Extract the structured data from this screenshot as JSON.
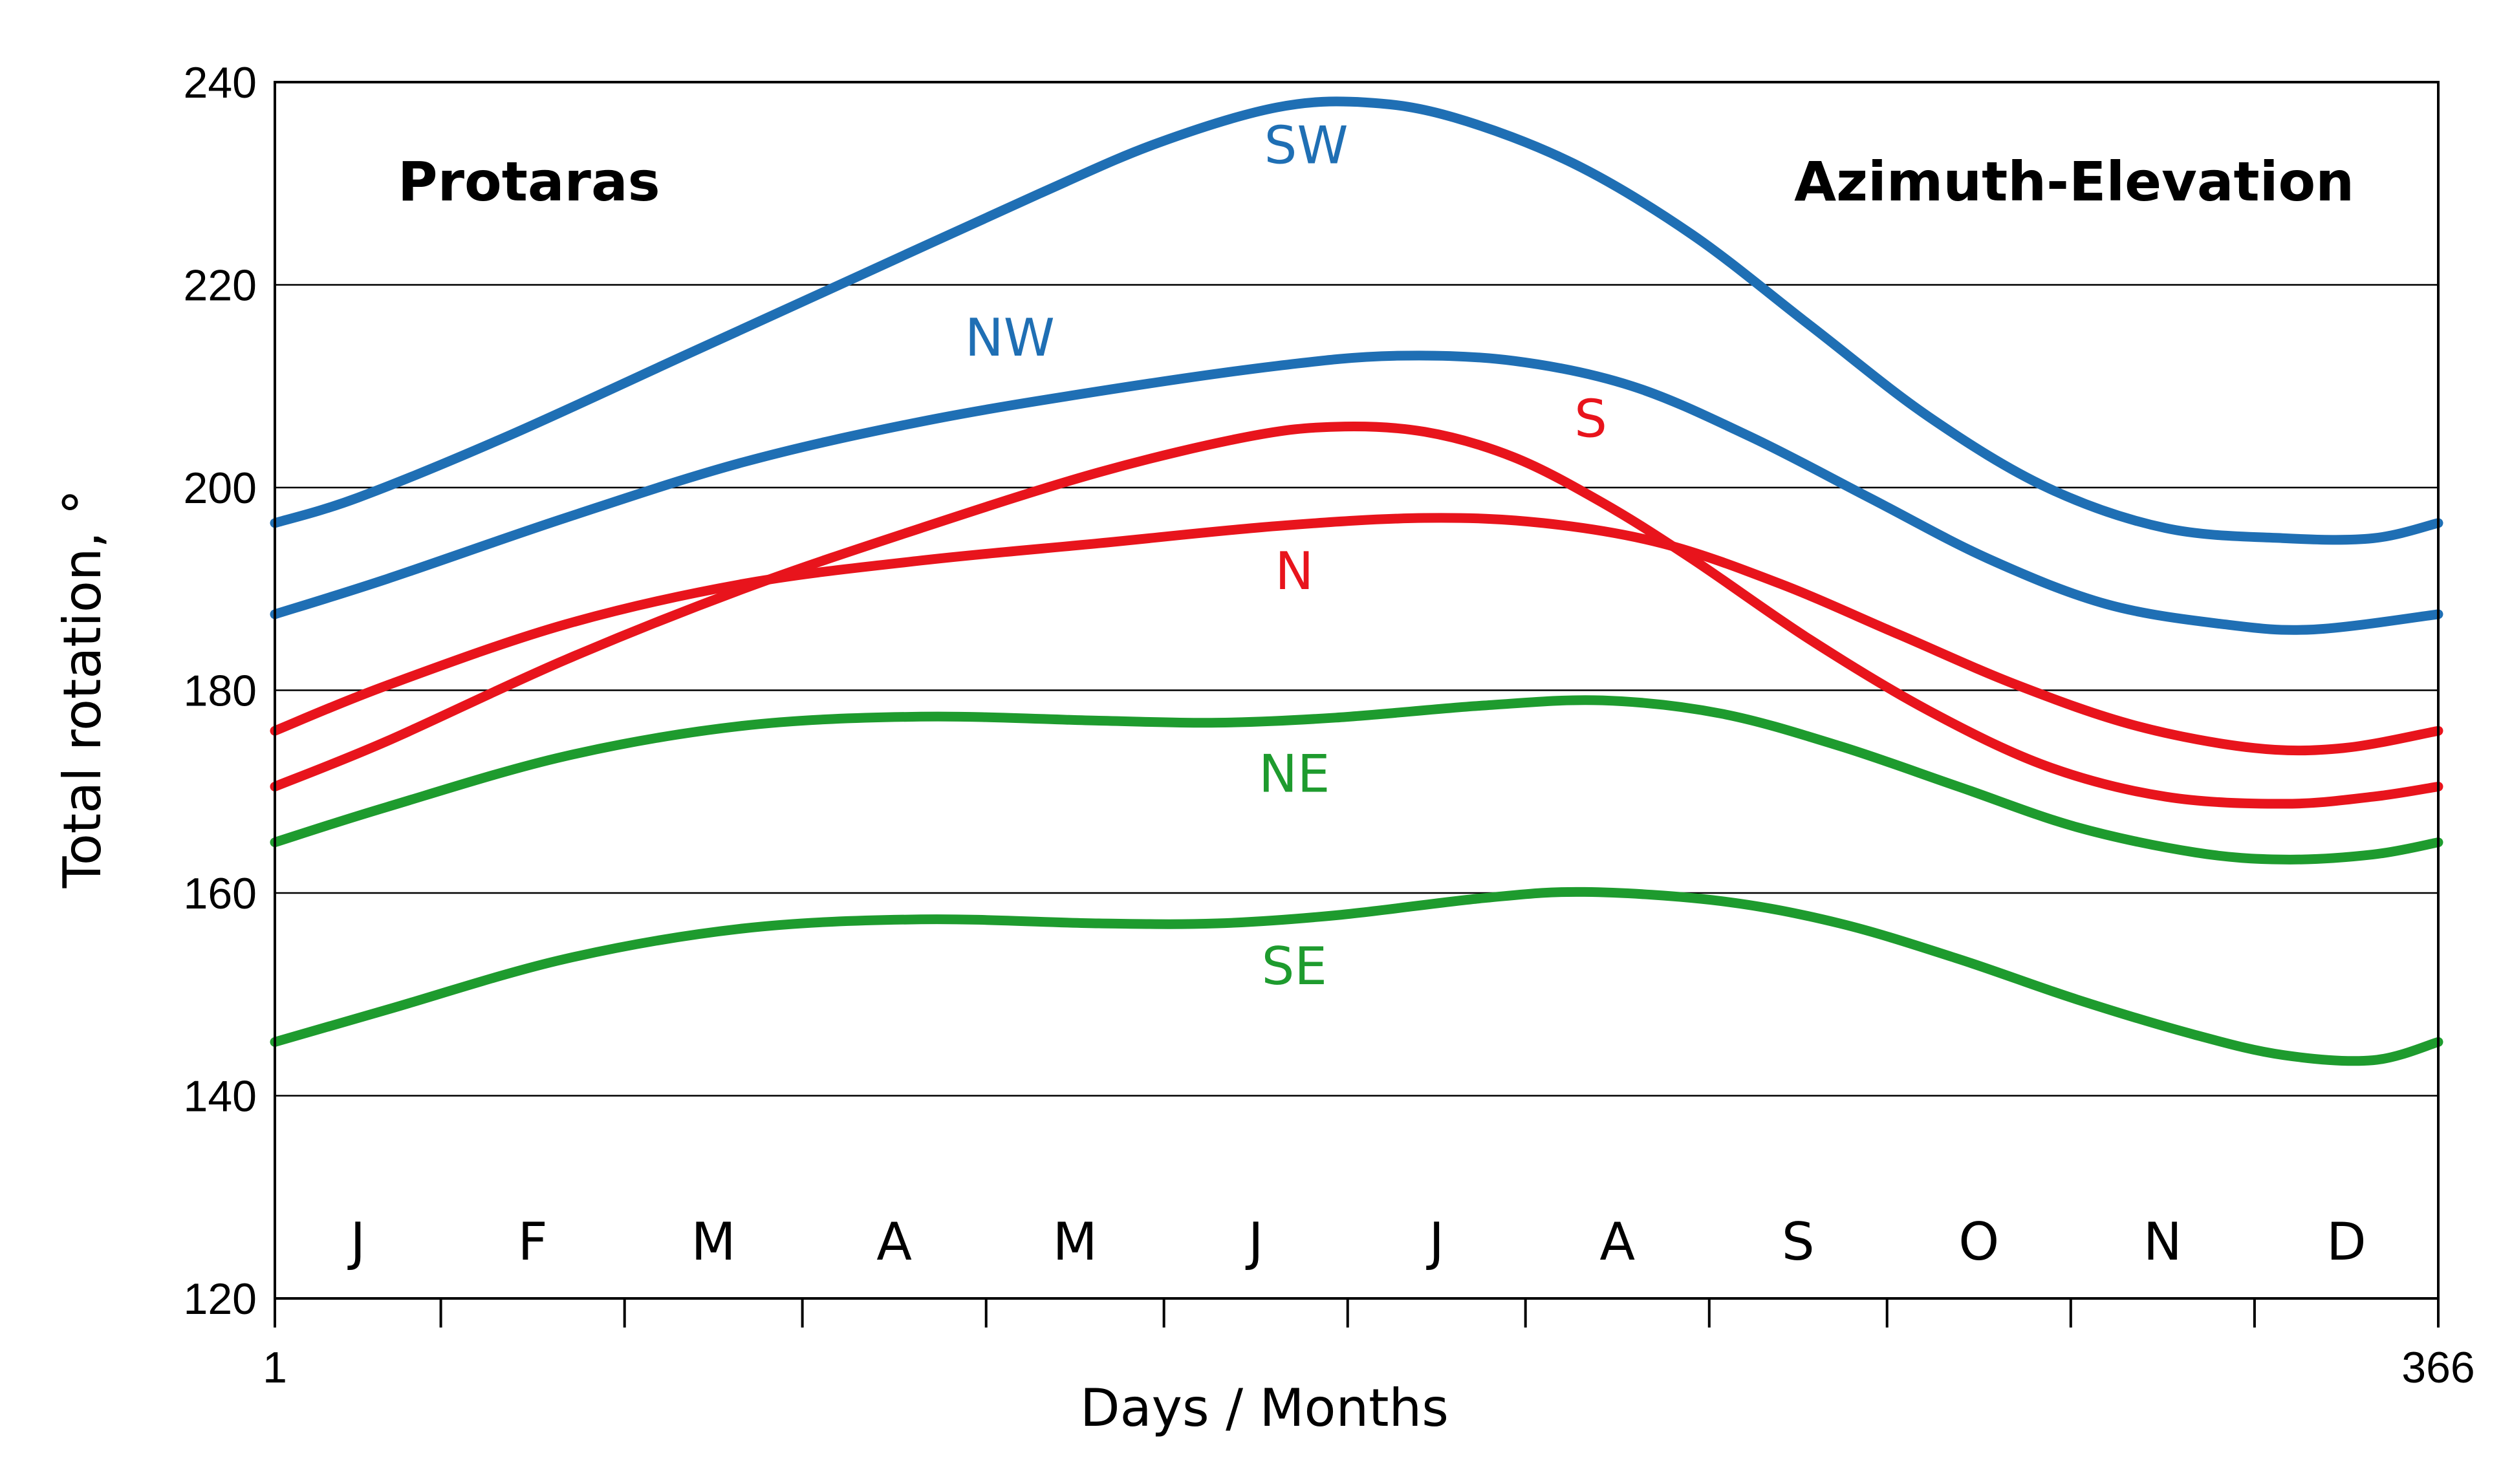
{
  "chart_data": {
    "type": "line",
    "title_left": "Protaras",
    "title_right": "Azimuth-Elevation",
    "xlabel": "Days / Months",
    "ylabel": "Total rotation, °",
    "xlim": [
      1,
      366
    ],
    "ylim": [
      120,
      240
    ],
    "yticks": [
      120,
      140,
      160,
      180,
      200,
      220,
      240
    ],
    "xtick_labels": [
      "1",
      "366"
    ],
    "month_labels": [
      "J",
      "F",
      "M",
      "A",
      "M",
      "J",
      "J",
      "A",
      "S",
      "O",
      "N",
      "D"
    ],
    "month_tick_days": [
      1,
      29,
      60,
      90,
      121,
      151,
      182,
      212,
      243,
      273,
      304,
      335,
      366
    ],
    "grid": true,
    "series": [
      {
        "name": "SW",
        "color": "#1f6fb4",
        "label_day": 175,
        "label_value": 232,
        "points": [
          [
            1,
            196.5
          ],
          [
            15,
            199
          ],
          [
            40,
            205
          ],
          [
            70,
            213
          ],
          [
            100,
            221
          ],
          [
            130,
            229
          ],
          [
            150,
            234
          ],
          [
            170,
            237.5
          ],
          [
            185,
            238
          ],
          [
            200,
            236.5
          ],
          [
            220,
            232
          ],
          [
            240,
            225
          ],
          [
            260,
            216
          ],
          [
            280,
            207
          ],
          [
            300,
            200
          ],
          [
            320,
            196
          ],
          [
            340,
            195
          ],
          [
            355,
            195
          ],
          [
            366,
            196.5
          ]
        ]
      },
      {
        "name": "NW",
        "color": "#1f6fb4",
        "label_day": 125,
        "label_value": 213,
        "points": [
          [
            1,
            187.5
          ],
          [
            20,
            191
          ],
          [
            50,
            197
          ],
          [
            80,
            202.5
          ],
          [
            110,
            206.5
          ],
          [
            140,
            209.5
          ],
          [
            170,
            212
          ],
          [
            190,
            213
          ],
          [
            210,
            212.5
          ],
          [
            230,
            210
          ],
          [
            250,
            205
          ],
          [
            270,
            199
          ],
          [
            290,
            193
          ],
          [
            310,
            188.5
          ],
          [
            330,
            186.5
          ],
          [
            345,
            186
          ],
          [
            366,
            187.5
          ]
        ]
      },
      {
        "name": "S",
        "color": "#e8141c",
        "label_day": 223,
        "label_value": 205,
        "points": [
          [
            1,
            170.5
          ],
          [
            20,
            175
          ],
          [
            50,
            183
          ],
          [
            80,
            190
          ],
          [
            110,
            196
          ],
          [
            140,
            201.5
          ],
          [
            165,
            205
          ],
          [
            180,
            206
          ],
          [
            195,
            205.5
          ],
          [
            210,
            203
          ],
          [
            225,
            198.5
          ],
          [
            240,
            193
          ],
          [
            260,
            185
          ],
          [
            280,
            178
          ],
          [
            300,
            172.5
          ],
          [
            320,
            169.5
          ],
          [
            340,
            168.8
          ],
          [
            355,
            169.5
          ],
          [
            366,
            170.5
          ]
        ]
      },
      {
        "name": "N",
        "color": "#e8141c",
        "label_day": 173,
        "label_value": 190,
        "points": [
          [
            1,
            176
          ],
          [
            20,
            180.5
          ],
          [
            50,
            186.5
          ],
          [
            80,
            190.5
          ],
          [
            110,
            192.8
          ],
          [
            140,
            194.5
          ],
          [
            170,
            196.2
          ],
          [
            195,
            197
          ],
          [
            215,
            196.5
          ],
          [
            235,
            194.5
          ],
          [
            255,
            190.5
          ],
          [
            275,
            185.5
          ],
          [
            295,
            180.5
          ],
          [
            315,
            176.5
          ],
          [
            335,
            174.3
          ],
          [
            350,
            174.3
          ],
          [
            366,
            176
          ]
        ]
      },
      {
        "name": "NE",
        "color": "#1e9b2e",
        "label_day": 173,
        "label_value": 170,
        "points": [
          [
            1,
            165
          ],
          [
            20,
            168.5
          ],
          [
            50,
            173.5
          ],
          [
            80,
            176.5
          ],
          [
            110,
            177.4
          ],
          [
            140,
            177
          ],
          [
            160,
            176.8
          ],
          [
            180,
            177.3
          ],
          [
            205,
            178.5
          ],
          [
            225,
            179
          ],
          [
            245,
            177.7
          ],
          [
            265,
            174.5
          ],
          [
            285,
            170.5
          ],
          [
            305,
            166.5
          ],
          [
            325,
            164
          ],
          [
            340,
            163.3
          ],
          [
            355,
            163.8
          ],
          [
            366,
            165
          ]
        ]
      },
      {
        "name": "SE",
        "color": "#1e9b2e",
        "label_day": 173,
        "label_value": 151,
        "points": [
          [
            1,
            145.3
          ],
          [
            20,
            148.5
          ],
          [
            50,
            153.5
          ],
          [
            80,
            156.5
          ],
          [
            110,
            157.4
          ],
          [
            140,
            157
          ],
          [
            160,
            157
          ],
          [
            180,
            157.8
          ],
          [
            205,
            159.5
          ],
          [
            222,
            160.1
          ],
          [
            245,
            159.2
          ],
          [
            265,
            157
          ],
          [
            285,
            153.5
          ],
          [
            305,
            149.5
          ],
          [
            325,
            146
          ],
          [
            340,
            144
          ],
          [
            355,
            143.5
          ],
          [
            366,
            145.3
          ]
        ]
      }
    ]
  }
}
